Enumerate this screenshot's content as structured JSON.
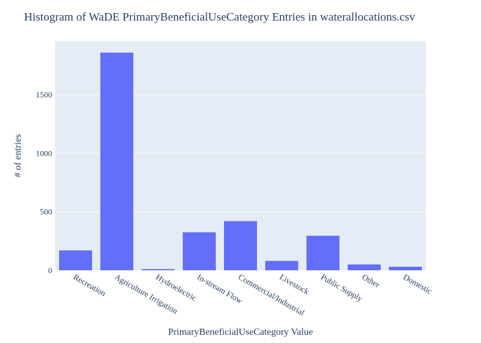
{
  "chart_data": {
    "type": "bar",
    "title": "Histogram of WaDE PrimaryBeneficialUseCategory Entries in waterallocations.csv",
    "xlabel": "PrimaryBeneficialUseCategory Value",
    "ylabel": "# of entries",
    "categories": [
      "Recreation",
      "Agriculture Irrigation",
      "Hydroelectric",
      "In-stream Flow",
      "Commercial/Industrial",
      "Livestock",
      "Public Supply",
      "Other",
      "Domestic"
    ],
    "values": [
      170,
      1860,
      10,
      325,
      420,
      80,
      295,
      50,
      30
    ],
    "ylim": [
      0,
      1958
    ],
    "yticks": [
      0,
      500,
      1000,
      1500
    ],
    "grid": true,
    "colors": {
      "bar": "#636efa",
      "plot_bg": "#e5ecf6",
      "grid": "#ffffff",
      "text": "#2a3f5f"
    }
  }
}
